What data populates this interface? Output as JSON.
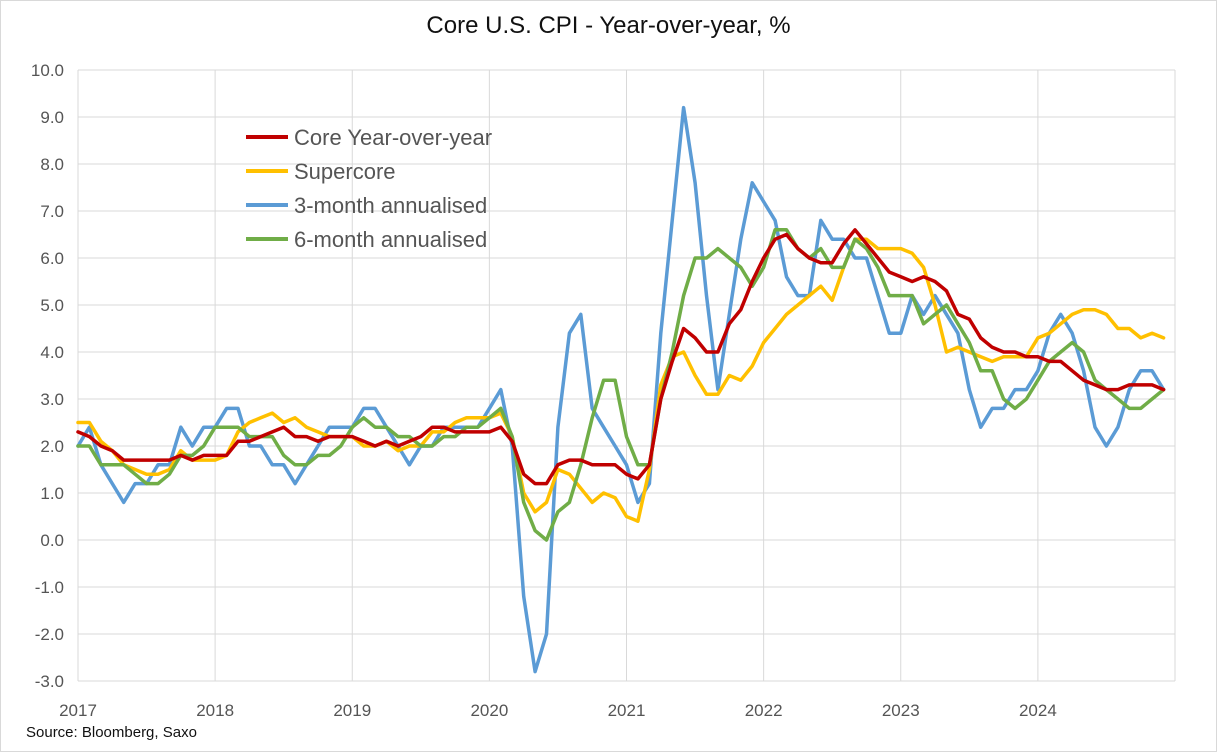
{
  "chart_data": {
    "type": "line",
    "title": "Core U.S. CPI - Year-over-year, %",
    "source": "Source: Bloomberg, Saxo",
    "xlabel": "",
    "ylabel": "",
    "x_ticks": [
      "2017",
      "2018",
      "2019",
      "2020",
      "2021",
      "2022",
      "2023",
      "2024"
    ],
    "ylim": [
      -3.0,
      10.0
    ],
    "y_ticks": [
      "10.0",
      "9.0",
      "8.0",
      "7.0",
      "6.0",
      "5.0",
      "4.0",
      "3.0",
      "2.0",
      "1.0",
      "0.0",
      "-1.0",
      "-2.0",
      "-3.0"
    ],
    "grid": true,
    "legend_position": "top-left",
    "x_start": "2017-01",
    "x_step": "monthly",
    "series": [
      {
        "name": "Core Year-over-year",
        "color": "#c00000",
        "values": [
          2.3,
          2.2,
          2.0,
          1.9,
          1.7,
          1.7,
          1.7,
          1.7,
          1.7,
          1.8,
          1.7,
          1.8,
          1.8,
          1.8,
          2.1,
          2.1,
          2.2,
          2.3,
          2.4,
          2.2,
          2.2,
          2.1,
          2.2,
          2.2,
          2.2,
          2.1,
          2.0,
          2.1,
          2.0,
          2.1,
          2.2,
          2.4,
          2.4,
          2.3,
          2.3,
          2.3,
          2.3,
          2.4,
          2.1,
          1.4,
          1.2,
          1.2,
          1.6,
          1.7,
          1.7,
          1.6,
          1.6,
          1.6,
          1.4,
          1.3,
          1.6,
          3.0,
          3.8,
          4.5,
          4.3,
          4.0,
          4.0,
          4.6,
          4.9,
          5.5,
          6.0,
          6.4,
          6.5,
          6.2,
          6.0,
          5.9,
          5.9,
          6.3,
          6.6,
          6.3,
          6.0,
          5.7,
          5.6,
          5.5,
          5.6,
          5.5,
          5.3,
          4.8,
          4.7,
          4.3,
          4.1,
          4.0,
          4.0,
          3.9,
          3.9,
          3.8,
          3.8,
          3.6,
          3.4,
          3.3,
          3.2,
          3.2,
          3.3,
          3.3,
          3.3,
          3.2
        ]
      },
      {
        "name": "Supercore",
        "color": "#ffc000",
        "values": [
          2.5,
          2.5,
          2.1,
          1.9,
          1.6,
          1.5,
          1.4,
          1.4,
          1.5,
          1.9,
          1.7,
          1.7,
          1.7,
          1.8,
          2.3,
          2.5,
          2.6,
          2.7,
          2.5,
          2.6,
          2.4,
          2.3,
          2.2,
          2.2,
          2.2,
          2.0,
          2.0,
          2.1,
          1.9,
          2.0,
          2.0,
          2.3,
          2.3,
          2.5,
          2.6,
          2.6,
          2.6,
          2.7,
          2.2,
          1.0,
          0.6,
          0.8,
          1.5,
          1.4,
          1.1,
          0.8,
          1.0,
          0.9,
          0.5,
          0.4,
          1.5,
          3.3,
          3.9,
          4.0,
          3.5,
          3.1,
          3.1,
          3.5,
          3.4,
          3.7,
          4.2,
          4.5,
          4.8,
          5.0,
          5.2,
          5.4,
          5.1,
          5.8,
          6.4,
          6.4,
          6.2,
          6.2,
          6.2,
          6.1,
          5.8,
          5.0,
          4.0,
          4.1,
          4.0,
          3.9,
          3.8,
          3.9,
          3.9,
          3.9,
          4.3,
          4.4,
          4.6,
          4.8,
          4.9,
          4.9,
          4.8,
          4.5,
          4.5,
          4.3,
          4.4,
          4.3
        ]
      },
      {
        "name": "3-month annualised",
        "color": "#5b9bd5",
        "values": [
          2.0,
          2.4,
          1.6,
          1.2,
          0.8,
          1.2,
          1.2,
          1.6,
          1.6,
          2.4,
          2.0,
          2.4,
          2.4,
          2.8,
          2.8,
          2.0,
          2.0,
          1.6,
          1.6,
          1.2,
          1.6,
          2.0,
          2.4,
          2.4,
          2.4,
          2.8,
          2.8,
          2.4,
          2.0,
          1.6,
          2.0,
          2.0,
          2.4,
          2.4,
          2.4,
          2.4,
          2.8,
          3.2,
          2.0,
          -1.2,
          -2.8,
          -2.0,
          2.4,
          4.4,
          4.8,
          2.8,
          2.4,
          2.0,
          1.6,
          0.8,
          1.2,
          4.4,
          6.8,
          9.2,
          7.6,
          5.2,
          3.2,
          4.8,
          6.4,
          7.6,
          7.2,
          6.8,
          5.6,
          5.2,
          5.2,
          6.8,
          6.4,
          6.4,
          6.0,
          6.0,
          5.2,
          4.4,
          4.4,
          5.2,
          4.8,
          5.2,
          4.8,
          4.4,
          3.2,
          2.4,
          2.8,
          2.8,
          3.2,
          3.2,
          3.6,
          4.4,
          4.8,
          4.4,
          3.6,
          2.4,
          2.0,
          2.4,
          3.2,
          3.6,
          3.6,
          3.2
        ]
      },
      {
        "name": "6-month annualised",
        "color": "#70ad47",
        "values": [
          2.0,
          2.0,
          1.6,
          1.6,
          1.6,
          1.4,
          1.2,
          1.2,
          1.4,
          1.8,
          1.8,
          2.0,
          2.4,
          2.4,
          2.4,
          2.2,
          2.2,
          2.2,
          1.8,
          1.6,
          1.6,
          1.8,
          1.8,
          2.0,
          2.4,
          2.6,
          2.4,
          2.4,
          2.2,
          2.2,
          2.0,
          2.0,
          2.2,
          2.2,
          2.4,
          2.4,
          2.6,
          2.8,
          2.2,
          0.8,
          0.2,
          0.0,
          0.6,
          0.8,
          1.6,
          2.6,
          3.4,
          3.4,
          2.2,
          1.6,
          1.6,
          3.0,
          4.0,
          5.2,
          6.0,
          6.0,
          6.2,
          6.0,
          5.8,
          5.4,
          5.8,
          6.6,
          6.6,
          6.2,
          6.0,
          6.2,
          5.8,
          5.8,
          6.4,
          6.2,
          5.8,
          5.2,
          5.2,
          5.2,
          4.6,
          4.8,
          5.0,
          4.6,
          4.2,
          3.6,
          3.6,
          3.0,
          2.8,
          3.0,
          3.4,
          3.8,
          4.0,
          4.2,
          4.0,
          3.4,
          3.2,
          3.0,
          2.8,
          2.8,
          3.0,
          3.2
        ]
      }
    ]
  }
}
